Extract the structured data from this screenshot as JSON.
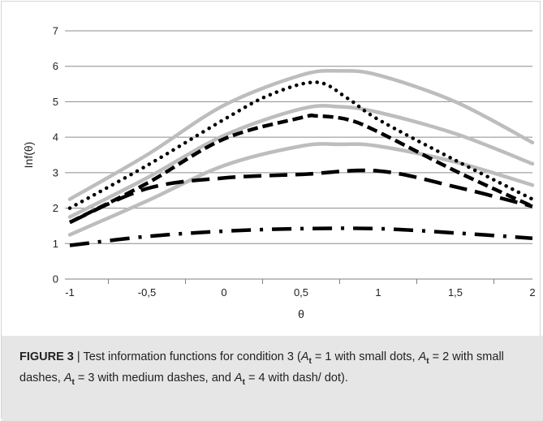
{
  "chart_data": {
    "type": "line",
    "xlabel": "θ",
    "ylabel": "Inf(θ)",
    "xlim": [
      -1,
      2
    ],
    "ylim": [
      0,
      7
    ],
    "x_ticks": [
      "-1",
      "-0,5",
      "0",
      "0,5",
      "1",
      "1,5",
      "2"
    ],
    "y_ticks": [
      "0",
      "1",
      "2",
      "3",
      "4",
      "5",
      "6",
      "7"
    ],
    "grid": "horizontal",
    "series": [
      {
        "style": "gray-solid",
        "color": "#bdbdbd",
        "x": [
          -1,
          -0.5,
          0,
          0.5,
          0.75,
          1,
          1.5,
          2
        ],
        "y": [
          2.25,
          3.5,
          4.9,
          5.75,
          5.87,
          5.75,
          5.0,
          3.85
        ]
      },
      {
        "style": "gray-solid",
        "color": "#bdbdbd",
        "x": [
          -1,
          -0.5,
          0,
          0.5,
          0.75,
          1,
          1.5,
          2
        ],
        "y": [
          1.75,
          2.85,
          4.05,
          4.8,
          4.86,
          4.7,
          4.1,
          3.25
        ]
      },
      {
        "style": "gray-solid",
        "color": "#bdbdbd",
        "x": [
          -1,
          -0.5,
          0,
          0.5,
          0.75,
          1,
          1.5,
          2
        ],
        "y": [
          1.25,
          2.2,
          3.2,
          3.75,
          3.8,
          3.75,
          3.3,
          2.65
        ]
      },
      {
        "style": "small-dots",
        "color": "#000000",
        "x": [
          -1,
          -0.5,
          0,
          0.3,
          0.6,
          0.8,
          1,
          1.5,
          2
        ],
        "y": [
          2.0,
          3.2,
          4.5,
          5.2,
          5.55,
          5.1,
          4.5,
          3.35,
          2.25
        ]
      },
      {
        "style": "small-dashes",
        "color": "#000000",
        "x": [
          -1,
          -0.5,
          0,
          0.5,
          0.6,
          0.8,
          1,
          1.5,
          2
        ],
        "y": [
          1.6,
          2.7,
          3.95,
          4.55,
          4.6,
          4.5,
          4.15,
          3.05,
          2.05
        ]
      },
      {
        "style": "medium-dashes",
        "color": "#000000",
        "x": [
          -1,
          -0.5,
          0,
          0.5,
          1,
          1.5,
          2
        ],
        "y": [
          1.6,
          2.55,
          2.85,
          2.95,
          3.05,
          2.6,
          2.05
        ]
      },
      {
        "style": "dash-dot",
        "color": "#000000",
        "x": [
          -1,
          -0.5,
          0,
          0.5,
          1,
          1.5,
          2
        ],
        "y": [
          0.95,
          1.2,
          1.35,
          1.42,
          1.42,
          1.3,
          1.15
        ]
      }
    ]
  },
  "caption": {
    "label": "FIGURE 3",
    "sep": " | ",
    "intro": "Test information functions for condition 3 (",
    "at_var": "A",
    "at_sub": "t",
    "part1": " = 1 with small dots, ",
    "part2": " = 2 with small dashes, ",
    "part3": " = 3 with medium dashes, and ",
    "part4": " = 4 with dash/ dot)."
  }
}
